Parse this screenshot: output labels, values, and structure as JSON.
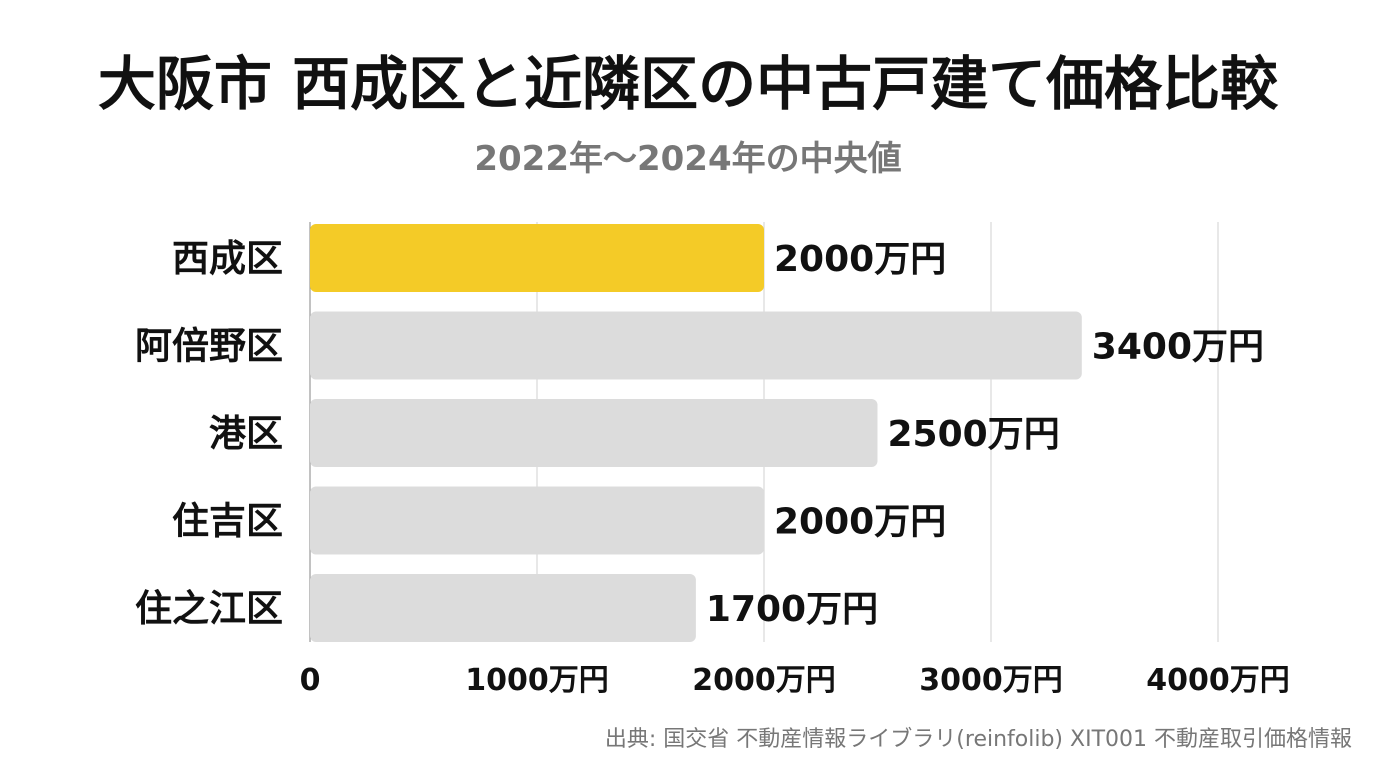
{
  "title": "大阪市 西成区と近隣区の中古戸建て価格比較",
  "subtitle": "2022年〜2024年の中央値",
  "source": "出典: 国交省 不動産情報ライブラリ(reinfolib) XIT001 不動産取引価格情報",
  "chart_data": {
    "type": "bar",
    "orientation": "horizontal",
    "categories": [
      "西成区",
      "阿倍野区",
      "港区",
      "住吉区",
      "住之江区"
    ],
    "values": [
      2000,
      3400,
      2500,
      2000,
      1700
    ],
    "value_labels": [
      "2000万円",
      "3400万円",
      "2500万円",
      "2000万円",
      "1700万円"
    ],
    "highlight_index": 0,
    "colors": {
      "highlight": "#F4CB27",
      "bar": "#DCDCDC",
      "grid": "#D9D9D9",
      "axis": "#999999"
    },
    "xlim": [
      0,
      4000
    ],
    "x_ticks": [
      0,
      1000,
      2000,
      3000,
      4000
    ],
    "x_tick_labels": [
      "0",
      "1000万円",
      "2000万円",
      "3000万円",
      "4000万円"
    ],
    "grid": true
  }
}
